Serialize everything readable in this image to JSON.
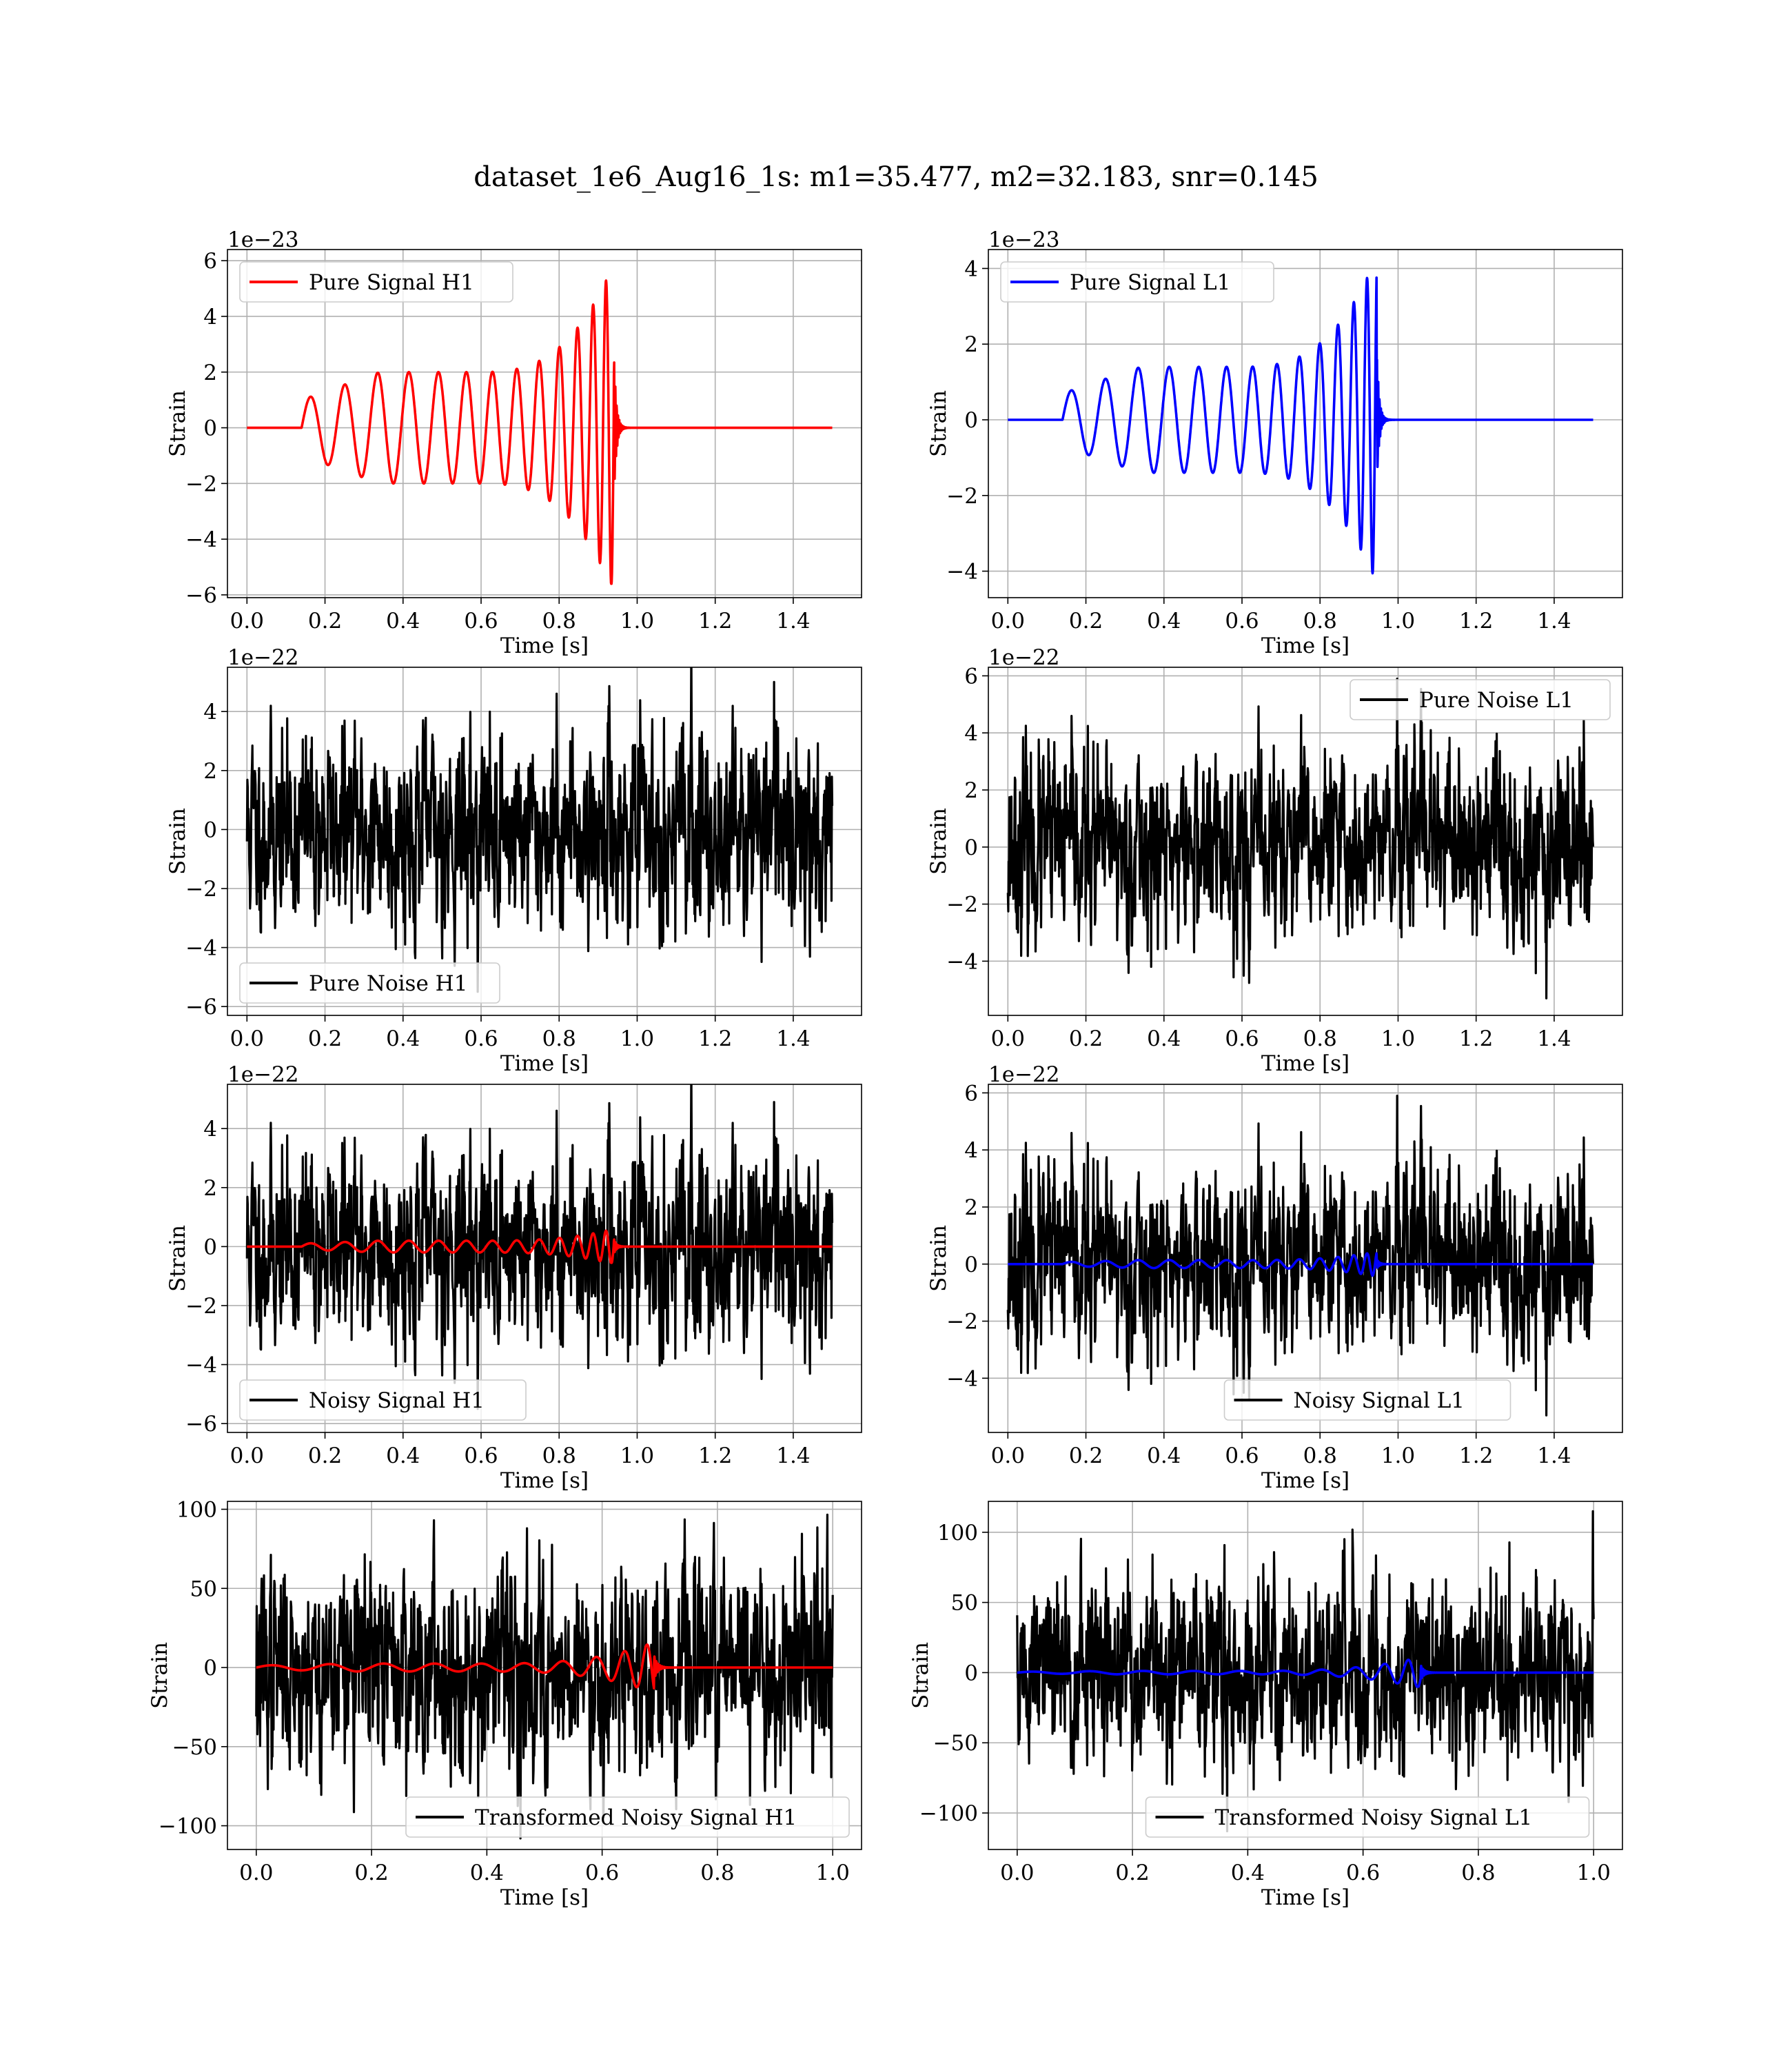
{
  "figure": {
    "title": "dataset_1e6_Aug16_1s: m1=35.477, m2=32.183, snr=0.145"
  },
  "colors": {
    "red": "#ff0000",
    "blue": "#0000ff",
    "black": "#000000"
  },
  "chart_data": [
    {
      "id": "pure-signal-h1",
      "type": "line",
      "xlabel": "Time [s]",
      "ylabel": "Strain",
      "offset_text": "1e−23",
      "xlim": [
        -0.05,
        1.575
      ],
      "ylim": [
        -6.1,
        6.4
      ],
      "xticks": [
        0.0,
        0.2,
        0.4,
        0.6,
        0.8,
        1.0,
        1.2,
        1.4
      ],
      "xtick_labels": [
        "0.0",
        "0.2",
        "0.4",
        "0.6",
        "0.8",
        "1.0",
        "1.2",
        "1.4"
      ],
      "yticks": [
        -6,
        -4,
        -2,
        0,
        2,
        4,
        6
      ],
      "ytick_labels": [
        "−6",
        "−4",
        "−2",
        "0",
        "2",
        "4",
        "6"
      ],
      "legend": {
        "position": "upper-left",
        "entries": [
          {
            "label": "Pure Signal H1",
            "color": "#ff0000"
          }
        ]
      },
      "series": [
        {
          "name": "Pure Signal H1",
          "color": "#ff0000",
          "kind": "chirp",
          "x_range": [
            0.0,
            1.5
          ],
          "t_start": 0.14,
          "t_merge": 0.94,
          "plateau_amplitude": 2.0,
          "peak_positive": 5.9,
          "peak_negative": -5.6
        }
      ]
    },
    {
      "id": "pure-signal-l1",
      "type": "line",
      "xlabel": "Time [s]",
      "ylabel": "Strain",
      "offset_text": "1e−23",
      "xlim": [
        -0.05,
        1.575
      ],
      "ylim": [
        -4.7,
        4.5
      ],
      "xticks": [
        0.0,
        0.2,
        0.4,
        0.6,
        0.8,
        1.0,
        1.2,
        1.4
      ],
      "xtick_labels": [
        "0.0",
        "0.2",
        "0.4",
        "0.6",
        "0.8",
        "1.0",
        "1.2",
        "1.4"
      ],
      "yticks": [
        -4,
        -2,
        0,
        2,
        4
      ],
      "ytick_labels": [
        "−4",
        "−2",
        "0",
        "2",
        "4"
      ],
      "legend": {
        "position": "upper-left",
        "entries": [
          {
            "label": "Pure Signal L1",
            "color": "#0000ff"
          }
        ]
      },
      "series": [
        {
          "name": "Pure Signal L1",
          "color": "#0000ff",
          "kind": "chirp",
          "x_range": [
            0.0,
            1.5
          ],
          "t_start": 0.14,
          "t_merge": 0.945,
          "plateau_amplitude": 1.4,
          "peak_positive": 4.0,
          "peak_negative": -4.3
        }
      ]
    },
    {
      "id": "pure-noise-h1",
      "type": "line",
      "xlabel": "Time [s]",
      "ylabel": "Strain",
      "offset_text": "1e−22",
      "xlim": [
        -0.05,
        1.575
      ],
      "ylim": [
        -6.3,
        5.5
      ],
      "xticks": [
        0.0,
        0.2,
        0.4,
        0.6,
        0.8,
        1.0,
        1.2,
        1.4
      ],
      "xtick_labels": [
        "0.0",
        "0.2",
        "0.4",
        "0.6",
        "0.8",
        "1.0",
        "1.2",
        "1.4"
      ],
      "yticks": [
        -6,
        -4,
        -2,
        0,
        2,
        4
      ],
      "ytick_labels": [
        "−6",
        "−4",
        "−2",
        "0",
        "2",
        "4"
      ],
      "legend": {
        "position": "lower-left",
        "entries": [
          {
            "label": "Pure Noise H1",
            "color": "#000000"
          }
        ]
      },
      "series": [
        {
          "name": "Pure Noise H1",
          "color": "#000000",
          "kind": "noise",
          "x_range": [
            0.0,
            1.5
          ],
          "amplitude": 1.45,
          "max": 5.0,
          "min": -5.5,
          "seed": 11
        }
      ]
    },
    {
      "id": "pure-noise-l1",
      "type": "line",
      "xlabel": "Time [s]",
      "ylabel": "Strain",
      "offset_text": "1e−22",
      "xlim": [
        -0.05,
        1.575
      ],
      "ylim": [
        -5.9,
        6.3
      ],
      "xticks": [
        0.0,
        0.2,
        0.4,
        0.6,
        0.8,
        1.0,
        1.2,
        1.4
      ],
      "xtick_labels": [
        "0.0",
        "0.2",
        "0.4",
        "0.6",
        "0.8",
        "1.0",
        "1.2",
        "1.4"
      ],
      "yticks": [
        -4,
        -2,
        0,
        2,
        4,
        6
      ],
      "ytick_labels": [
        "−4",
        "−2",
        "0",
        "2",
        "4",
        "6"
      ],
      "legend": {
        "position": "upper-right",
        "entries": [
          {
            "label": "Pure Noise L1",
            "color": "#000000"
          }
        ]
      },
      "series": [
        {
          "name": "Pure Noise L1",
          "color": "#000000",
          "kind": "noise",
          "x_range": [
            0.0,
            1.5
          ],
          "amplitude": 1.45,
          "max": 5.9,
          "min": -5.3,
          "seed": 23
        }
      ]
    },
    {
      "id": "noisy-signal-h1",
      "type": "line",
      "xlabel": "Time [s]",
      "ylabel": "Strain",
      "offset_text": "1e−22",
      "xlim": [
        -0.05,
        1.575
      ],
      "ylim": [
        -6.3,
        5.5
      ],
      "xticks": [
        0.0,
        0.2,
        0.4,
        0.6,
        0.8,
        1.0,
        1.2,
        1.4
      ],
      "xtick_labels": [
        "0.0",
        "0.2",
        "0.4",
        "0.6",
        "0.8",
        "1.0",
        "1.2",
        "1.4"
      ],
      "yticks": [
        -6,
        -4,
        -2,
        0,
        2,
        4
      ],
      "ytick_labels": [
        "−6",
        "−4",
        "−2",
        "0",
        "2",
        "4"
      ],
      "legend": {
        "position": "lower-left",
        "entries": [
          {
            "label": "Noisy Signal H1",
            "color": "#000000"
          }
        ]
      },
      "series": [
        {
          "name": "Noisy Signal H1",
          "color": "#000000",
          "kind": "noise",
          "x_range": [
            0.0,
            1.5
          ],
          "amplitude": 1.45,
          "max": 4.9,
          "min": -5.5,
          "seed": 11
        },
        {
          "name": "",
          "color": "#ff0000",
          "kind": "chirp",
          "x_range": [
            0.0,
            1.5
          ],
          "t_start": 0.14,
          "t_merge": 0.94,
          "plateau_amplitude": 0.2,
          "peak_positive": 0.6,
          "peak_negative": -0.55
        }
      ]
    },
    {
      "id": "noisy-signal-l1",
      "type": "line",
      "xlabel": "Time [s]",
      "ylabel": "Strain",
      "offset_text": "1e−22",
      "xlim": [
        -0.05,
        1.575
      ],
      "ylim": [
        -5.9,
        6.3
      ],
      "xticks": [
        0.0,
        0.2,
        0.4,
        0.6,
        0.8,
        1.0,
        1.2,
        1.4
      ],
      "xtick_labels": [
        "0.0",
        "0.2",
        "0.4",
        "0.6",
        "0.8",
        "1.0",
        "1.2",
        "1.4"
      ],
      "yticks": [
        -4,
        -2,
        0,
        2,
        4,
        6
      ],
      "ytick_labels": [
        "−4",
        "−2",
        "0",
        "2",
        "4",
        "6"
      ],
      "legend": {
        "position": "lower-center",
        "entries": [
          {
            "label": "Noisy Signal L1",
            "color": "#000000"
          }
        ]
      },
      "series": [
        {
          "name": "Noisy Signal L1",
          "color": "#000000",
          "kind": "noise",
          "x_range": [
            0.0,
            1.5
          ],
          "amplitude": 1.45,
          "max": 5.9,
          "min": -5.3,
          "seed": 23
        },
        {
          "name": "",
          "color": "#0000ff",
          "kind": "chirp",
          "x_range": [
            0.0,
            1.5
          ],
          "t_start": 0.14,
          "t_merge": 0.945,
          "plateau_amplitude": 0.14,
          "peak_positive": 0.4,
          "peak_negative": -0.43
        }
      ]
    },
    {
      "id": "transformed-noisy-signal-h1",
      "type": "line",
      "xlabel": "Time [s]",
      "ylabel": "Strain",
      "offset_text": "",
      "xlim": [
        -0.05,
        1.05
      ],
      "ylim": [
        -115,
        105
      ],
      "xticks": [
        0.0,
        0.2,
        0.4,
        0.6,
        0.8,
        1.0
      ],
      "xtick_labels": [
        "0.0",
        "0.2",
        "0.4",
        "0.6",
        "0.8",
        "1.0"
      ],
      "yticks": [
        -100,
        -50,
        0,
        50,
        100
      ],
      "ytick_labels": [
        "−100",
        "−50",
        "0",
        "50",
        "100"
      ],
      "legend": {
        "position": "lower-right",
        "entries": [
          {
            "label": "Transformed Noisy Signal H1",
            "color": "#000000"
          }
        ]
      },
      "series": [
        {
          "name": "Transformed Noisy Signal H1",
          "color": "#000000",
          "kind": "noise",
          "x_range": [
            0.0,
            1.0
          ],
          "amplitude": 28,
          "max": 93,
          "min": -108,
          "seed": 37
        },
        {
          "name": "",
          "color": "#ff0000",
          "kind": "chirp",
          "x_range": [
            0.0,
            1.0
          ],
          "t_start": 0.0,
          "t_merge": 0.69,
          "plateau_amplitude": 2.5,
          "peak_positive": 16,
          "peak_negative": -15
        }
      ]
    },
    {
      "id": "transformed-noisy-signal-l1",
      "type": "line",
      "xlabel": "Time [s]",
      "ylabel": "Strain",
      "offset_text": "",
      "xlim": [
        -0.05,
        1.05
      ],
      "ylim": [
        -126,
        122
      ],
      "xticks": [
        0.0,
        0.2,
        0.4,
        0.6,
        0.8,
        1.0
      ],
      "xtick_labels": [
        "0.0",
        "0.2",
        "0.4",
        "0.6",
        "0.8",
        "1.0"
      ],
      "yticks": [
        -100,
        -50,
        0,
        50,
        100
      ],
      "ytick_labels": [
        "−100",
        "−50",
        "0",
        "50",
        "100"
      ],
      "legend": {
        "position": "lower-center",
        "entries": [
          {
            "label": "Transformed Noisy Signal L1",
            "color": "#000000"
          }
        ]
      },
      "series": [
        {
          "name": "Transformed Noisy Signal L1",
          "color": "#000000",
          "kind": "noise",
          "x_range": [
            0.0,
            1.0
          ],
          "amplitude": 30,
          "max": 115,
          "min": -113,
          "seed": 51
        },
        {
          "name": "",
          "color": "#0000ff",
          "kind": "chirp",
          "x_range": [
            0.0,
            1.0
          ],
          "t_start": 0.0,
          "t_merge": 0.7,
          "plateau_amplitude": 1.2,
          "peak_positive": 11,
          "peak_negative": -10
        }
      ]
    }
  ]
}
